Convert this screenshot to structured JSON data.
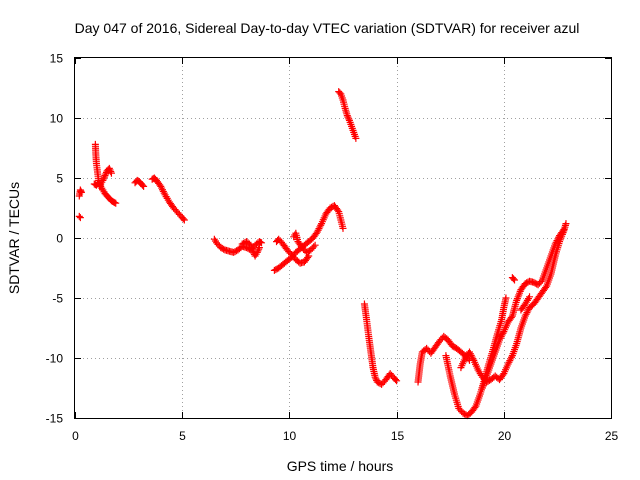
{
  "chart_data": {
    "type": "scatter",
    "title": "Day 047 of 2016, Sidereal Day-to-day VTEC variation (SDTVAR) for receiver azul",
    "xlabel": "GPS time / hours",
    "ylabel": "SDTVAR / TECUs",
    "xlim": [
      0,
      25
    ],
    "ylim": [
      -15,
      15
    ],
    "xticks": [
      0,
      5,
      10,
      15,
      20,
      25
    ],
    "yticks": [
      -15,
      -10,
      -5,
      0,
      5,
      10,
      15
    ],
    "grid": true,
    "marker": "+",
    "color": "#ff0000",
    "segments": [
      [
        [
          0.2,
          3.5
        ],
        [
          0.25,
          4.0
        ],
        [
          0.3,
          3.8
        ]
      ],
      [
        [
          0.2,
          1.8
        ],
        [
          0.25,
          1.7
        ]
      ],
      [
        [
          0.95,
          7.8
        ],
        [
          0.97,
          7.0
        ],
        [
          1.0,
          6.2
        ],
        [
          1.05,
          5.5
        ],
        [
          1.1,
          4.8
        ],
        [
          1.15,
          4.3
        ],
        [
          1.2,
          4.5
        ],
        [
          1.3,
          4.8
        ],
        [
          1.4,
          5.2
        ],
        [
          1.5,
          5.6
        ],
        [
          1.6,
          5.8
        ],
        [
          1.7,
          5.4
        ]
      ],
      [
        [
          0.9,
          4.5
        ],
        [
          1.0,
          4.4
        ],
        [
          1.1,
          4.6
        ],
        [
          1.2,
          4.3
        ],
        [
          1.3,
          4.0
        ],
        [
          1.4,
          3.7
        ],
        [
          1.5,
          3.5
        ],
        [
          1.6,
          3.3
        ],
        [
          1.7,
          3.1
        ],
        [
          1.8,
          3.0
        ],
        [
          1.9,
          2.9
        ]
      ],
      [
        [
          2.8,
          4.6
        ],
        [
          2.9,
          4.8
        ],
        [
          3.0,
          4.7
        ],
        [
          3.1,
          4.5
        ],
        [
          3.2,
          4.3
        ]
      ],
      [
        [
          3.6,
          4.9
        ],
        [
          3.7,
          5.0
        ],
        [
          3.8,
          4.8
        ],
        [
          4.0,
          4.3
        ],
        [
          4.2,
          3.6
        ],
        [
          4.4,
          3.0
        ],
        [
          4.6,
          2.5
        ],
        [
          4.8,
          2.1
        ],
        [
          5.0,
          1.7
        ],
        [
          5.1,
          1.5
        ]
      ],
      [
        [
          6.5,
          -0.1
        ],
        [
          6.6,
          -0.4
        ],
        [
          6.8,
          -0.8
        ],
        [
          7.0,
          -1.0
        ],
        [
          7.2,
          -1.1
        ],
        [
          7.4,
          -1.2
        ],
        [
          7.6,
          -1.0
        ],
        [
          7.8,
          -0.7
        ],
        [
          8.0,
          -0.8
        ],
        [
          8.2,
          -1.0
        ],
        [
          8.4,
          -0.6
        ],
        [
          8.6,
          -0.3
        ],
        [
          8.7,
          -0.4
        ]
      ],
      [
        [
          7.8,
          -0.5
        ],
        [
          8.0,
          -0.3
        ],
        [
          8.2,
          -0.6
        ],
        [
          8.3,
          -1.1
        ],
        [
          8.4,
          -1.5
        ],
        [
          8.5,
          -1.2
        ],
        [
          8.6,
          -0.8
        ]
      ],
      [
        [
          9.3,
          -2.7
        ],
        [
          9.5,
          -2.5
        ],
        [
          9.7,
          -2.2
        ],
        [
          9.9,
          -1.9
        ],
        [
          10.1,
          -1.6
        ],
        [
          10.3,
          -1.2
        ],
        [
          10.5,
          -0.9
        ],
        [
          10.7,
          -0.6
        ],
        [
          10.9,
          -0.3
        ],
        [
          11.1,
          0.0
        ],
        [
          11.3,
          0.5
        ],
        [
          11.5,
          1.2
        ],
        [
          11.7,
          2.0
        ],
        [
          11.9,
          2.5
        ],
        [
          12.1,
          2.7
        ],
        [
          12.3,
          2.2
        ],
        [
          12.4,
          1.5
        ],
        [
          12.5,
          0.8
        ]
      ],
      [
        [
          9.4,
          -0.3
        ],
        [
          9.5,
          -0.1
        ],
        [
          9.7,
          -0.5
        ],
        [
          9.9,
          -1.0
        ],
        [
          10.1,
          -1.4
        ],
        [
          10.3,
          -1.8
        ],
        [
          10.5,
          -2.1
        ],
        [
          10.7,
          -2.0
        ],
        [
          10.9,
          -1.5
        ]
      ],
      [
        [
          10.2,
          0.1
        ],
        [
          10.3,
          0.4
        ],
        [
          10.4,
          -0.3
        ],
        [
          10.6,
          -0.8
        ],
        [
          10.8,
          -1.2
        ],
        [
          11.0,
          -1.0
        ],
        [
          11.2,
          -0.6
        ]
      ],
      [
        [
          12.3,
          12.2
        ],
        [
          12.4,
          12.0
        ],
        [
          12.5,
          11.5
        ],
        [
          12.6,
          10.8
        ],
        [
          12.7,
          10.2
        ],
        [
          12.8,
          9.8
        ],
        [
          12.9,
          9.3
        ],
        [
          13.0,
          8.8
        ],
        [
          13.1,
          8.3
        ]
      ],
      [
        [
          13.5,
          -5.5
        ],
        [
          13.6,
          -6.8
        ],
        [
          13.7,
          -8.2
        ],
        [
          13.8,
          -9.5
        ],
        [
          13.9,
          -10.8
        ],
        [
          14.0,
          -11.6
        ],
        [
          14.1,
          -12.0
        ],
        [
          14.3,
          -12.2
        ],
        [
          14.5,
          -11.8
        ],
        [
          14.7,
          -11.3
        ],
        [
          14.9,
          -11.7
        ],
        [
          15.0,
          -11.9
        ]
      ],
      [
        [
          16.0,
          -12.0
        ],
        [
          16.1,
          -10.5
        ],
        [
          16.2,
          -9.5
        ],
        [
          16.4,
          -9.2
        ],
        [
          16.6,
          -9.6
        ],
        [
          16.8,
          -9.1
        ],
        [
          17.0,
          -8.6
        ],
        [
          17.2,
          -8.2
        ],
        [
          17.4,
          -8.5
        ],
        [
          17.6,
          -9.0
        ],
        [
          17.8,
          -9.2
        ],
        [
          18.0,
          -9.5
        ],
        [
          18.2,
          -9.8
        ],
        [
          18.4,
          -10.2
        ]
      ],
      [
        [
          17.3,
          -9.8
        ],
        [
          17.5,
          -11.5
        ],
        [
          17.7,
          -13.0
        ],
        [
          17.9,
          -14.2
        ],
        [
          18.1,
          -14.6
        ],
        [
          18.3,
          -14.8
        ],
        [
          18.5,
          -14.5
        ],
        [
          18.7,
          -14.0
        ],
        [
          18.9,
          -13.0
        ],
        [
          19.1,
          -11.8
        ],
        [
          19.3,
          -10.5
        ],
        [
          19.5,
          -9.3
        ],
        [
          19.7,
          -8.0
        ],
        [
          19.9,
          -6.8
        ],
        [
          20.0,
          -5.8
        ],
        [
          20.1,
          -5.0
        ]
      ],
      [
        [
          18.0,
          -10.8
        ],
        [
          18.2,
          -10.0
        ],
        [
          18.4,
          -9.5
        ],
        [
          18.6,
          -10.2
        ],
        [
          18.8,
          -11.0
        ],
        [
          19.0,
          -11.6
        ],
        [
          19.2,
          -12.0
        ],
        [
          19.4,
          -11.8
        ],
        [
          19.6,
          -11.5
        ],
        [
          19.8,
          -11.8
        ],
        [
          20.0,
          -11.3
        ],
        [
          20.2,
          -10.5
        ],
        [
          20.4,
          -9.8
        ],
        [
          20.6,
          -8.8
        ],
        [
          20.8,
          -7.5
        ],
        [
          21.0,
          -6.5
        ],
        [
          21.2,
          -5.8
        ],
        [
          21.4,
          -5.5
        ],
        [
          21.6,
          -5.0
        ],
        [
          21.8,
          -4.5
        ],
        [
          22.0,
          -4.0
        ],
        [
          22.2,
          -3.0
        ],
        [
          22.4,
          -1.5
        ],
        [
          22.6,
          -0.3
        ],
        [
          22.8,
          0.6
        ],
        [
          22.9,
          1.2
        ]
      ],
      [
        [
          19.0,
          -12.5
        ],
        [
          19.2,
          -11.5
        ],
        [
          19.4,
          -10.5
        ],
        [
          19.6,
          -9.5
        ],
        [
          19.8,
          -8.5
        ],
        [
          20.0,
          -7.8
        ],
        [
          20.2,
          -7.0
        ],
        [
          20.4,
          -6.5
        ],
        [
          20.6,
          -5.2
        ],
        [
          20.8,
          -4.3
        ],
        [
          21.0,
          -3.8
        ],
        [
          21.2,
          -3.6
        ],
        [
          21.4,
          -3.7
        ],
        [
          21.6,
          -3.9
        ],
        [
          21.8,
          -3.5
        ],
        [
          22.0,
          -2.5
        ],
        [
          22.2,
          -1.5
        ],
        [
          22.4,
          -0.5
        ],
        [
          22.6,
          0.2
        ],
        [
          22.8,
          0.7
        ]
      ],
      [
        [
          20.4,
          -3.3
        ],
        [
          20.5,
          -3.5
        ]
      ],
      [
        [
          20.8,
          -6.0
        ],
        [
          21.0,
          -5.5
        ],
        [
          21.2,
          -4.9
        ]
      ]
    ]
  }
}
